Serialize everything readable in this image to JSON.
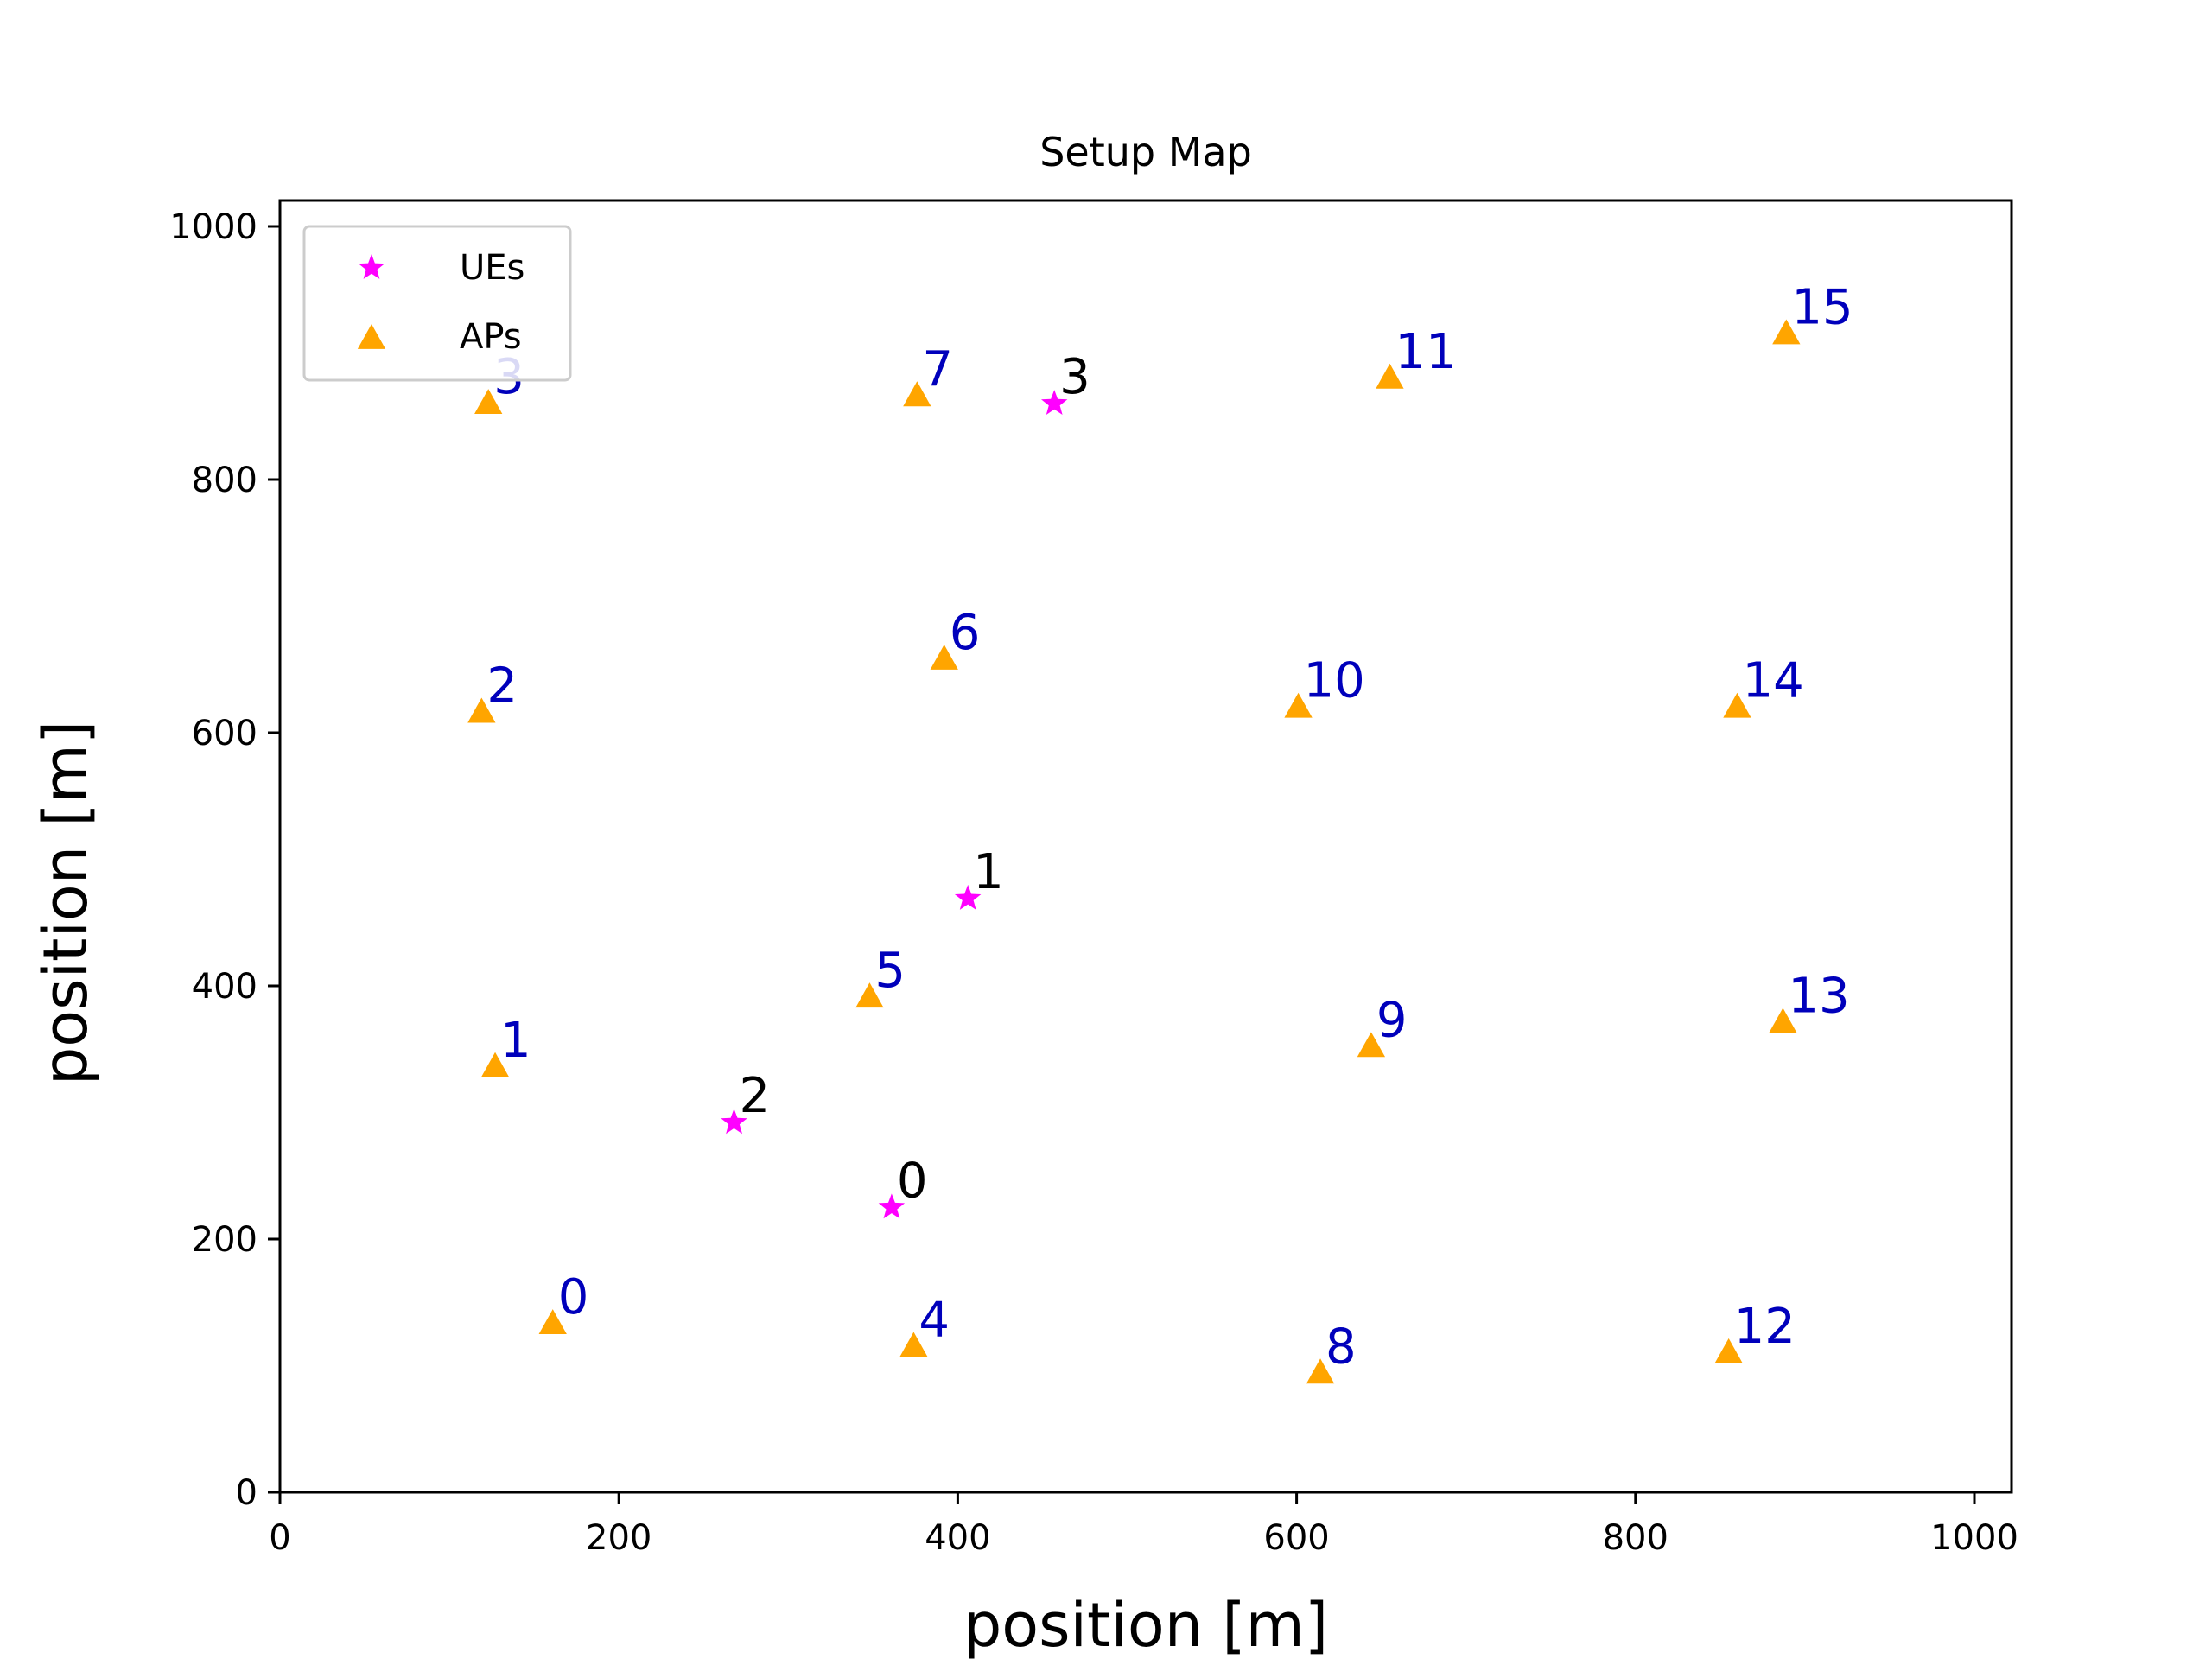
{
  "chart_data": {
    "type": "scatter",
    "title": "Setup Map",
    "xlabel": "position [m]",
    "ylabel": "position [m]",
    "xlim": [
      0,
      1020
    ],
    "ylim": [
      0,
      1020
    ],
    "xticks": [
      0,
      200,
      400,
      600,
      800,
      1000
    ],
    "yticks": [
      0,
      200,
      400,
      600,
      800,
      1000
    ],
    "grid": false,
    "legend_position": "top-left",
    "series": [
      {
        "name": "UEs",
        "marker": "star",
        "color": "#ff00ff",
        "label_color": "#000000",
        "points": [
          {
            "label": "0",
            "x": 361,
            "y": 225
          },
          {
            "label": "1",
            "x": 406,
            "y": 469
          },
          {
            "label": "2",
            "x": 268,
            "y": 292
          },
          {
            "label": "3",
            "x": 457,
            "y": 860
          }
        ]
      },
      {
        "name": "APs",
        "marker": "triangle",
        "color": "#ffa500",
        "label_color": "#0000bb",
        "points": [
          {
            "label": "0",
            "x": 161,
            "y": 133
          },
          {
            "label": "1",
            "x": 127,
            "y": 336
          },
          {
            "label": "2",
            "x": 119,
            "y": 616
          },
          {
            "label": "3",
            "x": 123,
            "y": 860
          },
          {
            "label": "4",
            "x": 374,
            "y": 115
          },
          {
            "label": "5",
            "x": 348,
            "y": 391
          },
          {
            "label": "6",
            "x": 392,
            "y": 658
          },
          {
            "label": "7",
            "x": 376,
            "y": 866
          },
          {
            "label": "8",
            "x": 614,
            "y": 94
          },
          {
            "label": "9",
            "x": 644,
            "y": 352
          },
          {
            "label": "10",
            "x": 601,
            "y": 620
          },
          {
            "label": "11",
            "x": 655,
            "y": 880
          },
          {
            "label": "12",
            "x": 855,
            "y": 110
          },
          {
            "label": "13",
            "x": 887,
            "y": 371
          },
          {
            "label": "14",
            "x": 860,
            "y": 620
          },
          {
            "label": "15",
            "x": 889,
            "y": 915
          }
        ]
      }
    ]
  }
}
